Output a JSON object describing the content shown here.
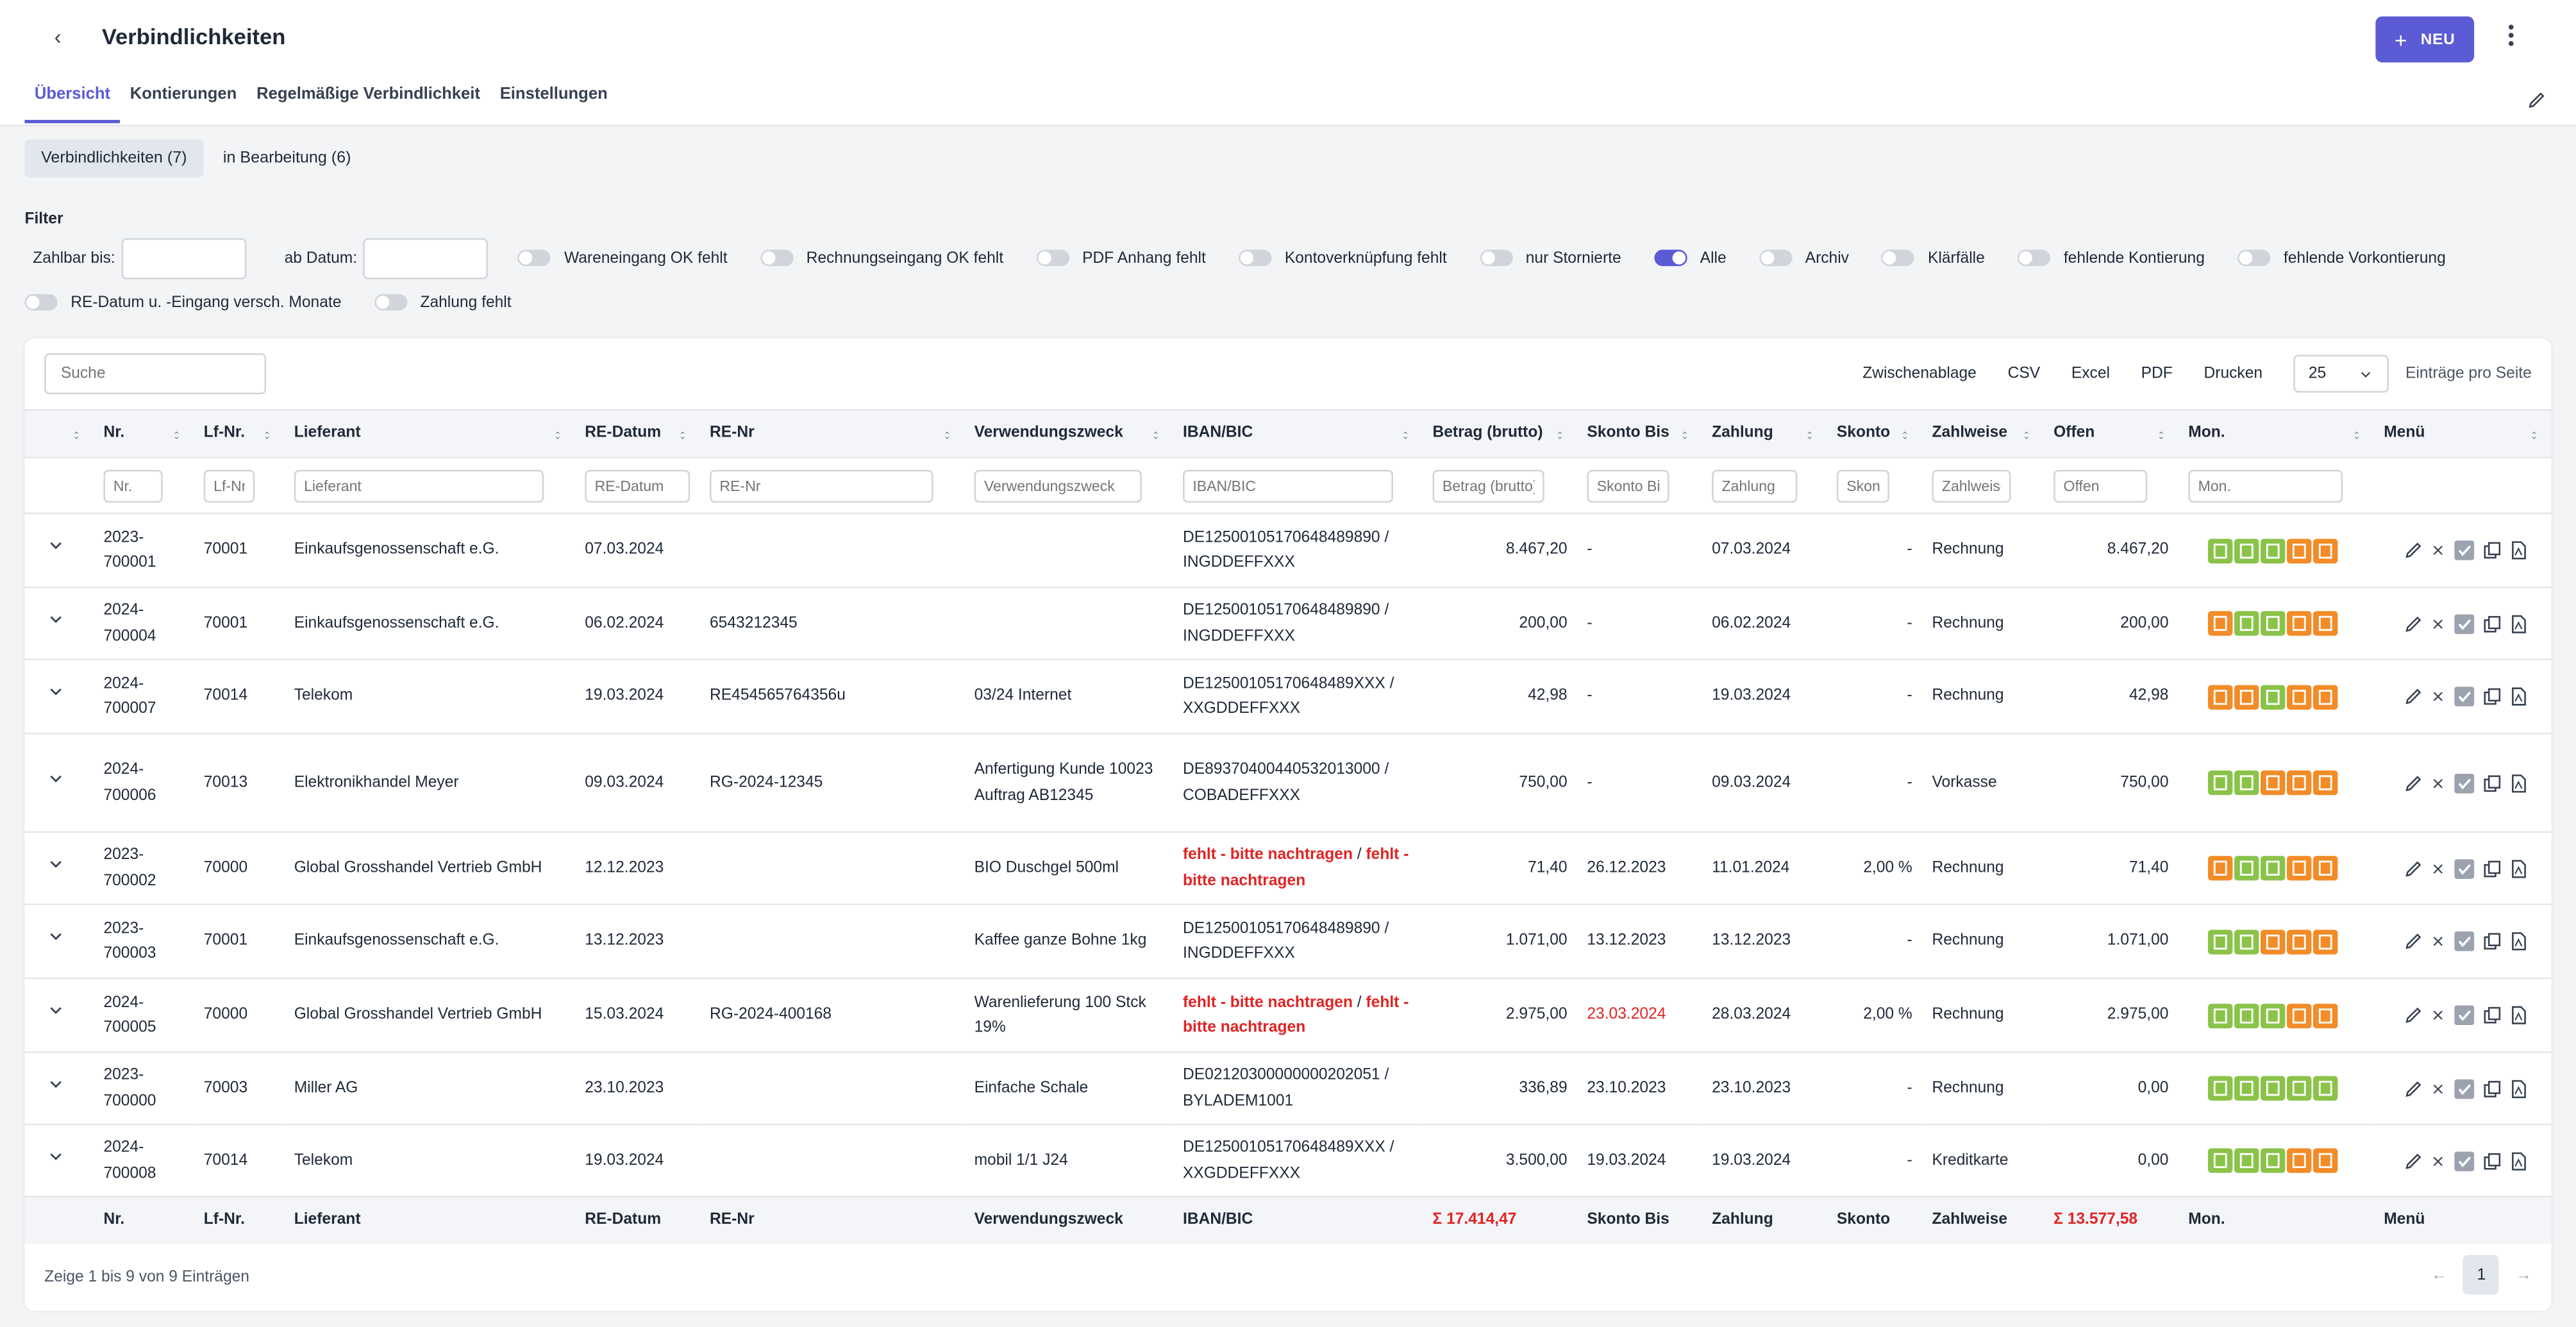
{
  "header": {
    "back": "‹",
    "title": "Verbindlichkeiten",
    "new_button": "NEU",
    "new_icon": "+"
  },
  "tabs": [
    "Übersicht",
    "Kontierungen",
    "Regelmäßige Verbindlichkeit",
    "Einstellungen"
  ],
  "subtabs": [
    "Verbindlichkeiten (7)",
    "in Bearbeitung (6)"
  ],
  "filter": {
    "title": "Filter",
    "dates": [
      "Zahlbar bis:",
      "ab Datum:"
    ],
    "toggles": [
      {
        "label": "Wareneingang OK fehlt",
        "on": false
      },
      {
        "label": "Rechnungseingang OK fehlt",
        "on": false
      },
      {
        "label": "PDF Anhang fehlt",
        "on": false
      },
      {
        "label": "Kontoverknüpfung fehlt",
        "on": false
      },
      {
        "label": "nur Stornierte",
        "on": false
      },
      {
        "label": "Alle",
        "on": true
      },
      {
        "label": "Archiv",
        "on": false
      },
      {
        "label": "Klärfälle",
        "on": false
      },
      {
        "label": "fehlende Kontierung",
        "on": false
      },
      {
        "label": "fehlende Vorkontierung",
        "on": false
      },
      {
        "label": "RE-Datum u. -Eingang versch. Monate",
        "on": false
      },
      {
        "label": "Zahlung fehlt",
        "on": false
      }
    ]
  },
  "toolbar": {
    "search": "Suche",
    "buttons": [
      "Zwischenablage",
      "CSV",
      "Excel",
      "PDF",
      "Drucken"
    ],
    "page_size": "25",
    "page_size_label": "Einträge pro Seite"
  },
  "table": {
    "columns": [
      "Nr.",
      "Lf-Nr.",
      "Lieferant",
      "RE-Datum",
      "RE-Nr",
      "Verwendungszweck",
      "IBAN/BIC",
      "Betrag (brutto)",
      "Skonto Bis",
      "Zahlung",
      "Skonto",
      "Zahlweise",
      "Offen",
      "Mon.",
      "Menü"
    ],
    "filters": [
      "Nr.",
      "Lf-Nr.",
      "Lieferant",
      "RE-Datum",
      "RE-Nr",
      "Verwendungszweck",
      "IBAN/BIC",
      "Betrag (brutto)",
      "Skonto Bis",
      "Zahlung",
      "Skonto",
      "Zahlweise",
      "Offen",
      "Mon."
    ],
    "rows": [
      {
        "nr": "2023-700001",
        "lf": "70001",
        "lieferant": "Einkaufsgenossenschaft e.G.",
        "re_datum": "07.03.2024",
        "iban": "DE12500105170648489890",
        "bic": "/ INGDDEFFXXX",
        "betrag": "8.467,20",
        "skonto_bis": "-",
        "zahlung": "07.03.2024",
        "skonto": "-",
        "zahlweise": "Rechnung",
        "offen": "8.467,20",
        "mon": [
          "#8bc34a",
          "#8bc34a",
          "#8bc34a",
          "#f28c28",
          "#f28c28"
        ]
      },
      {
        "nr": "2024-700004",
        "lf": "70001",
        "lieferant": "Einkaufsgenossenschaft e.G.",
        "re_datum": "06.02.2024",
        "re_nr": "6543212345",
        "iban": "DE12500105170648489890",
        "bic": "/ INGDDEFFXXX",
        "betrag": "200,00",
        "skonto_bis": "-",
        "zahlung": "06.02.2024",
        "skonto": "-",
        "zahlweise": "Rechnung",
        "offen": "200,00",
        "mon": [
          "#f28c28",
          "#8bc34a",
          "#8bc34a",
          "#f28c28",
          "#f28c28"
        ]
      },
      {
        "nr": "2024-700007",
        "lf": "70014",
        "lieferant": "Telekom",
        "re_datum": "19.03.2024",
        "re_nr": "RE454565764356u",
        "zweck": "03/24 Internet",
        "iban": "DE12500105170648489XXX",
        "bic": "/ XXGDDEFFXXX",
        "betrag": "42,98",
        "skonto_bis": "-",
        "zahlung": "19.03.2024",
        "skonto": "-",
        "zahlweise": "Rechnung",
        "offen": "42,98",
        "mon": [
          "#f28c28",
          "#f28c28",
          "#8bc34a",
          "#f28c28",
          "#f28c28"
        ]
      },
      {
        "nr": "2024-700006",
        "lf": "70013",
        "lieferant": "Elektronikhandel Meyer",
        "re_datum": "09.03.2024",
        "re_nr": "RG-2024-12345",
        "zweck": "Anfertigung Kunde 10023 Auftrag AB12345",
        "iban": "DE89370400440532013000",
        "bic": "/ COBADEFFXXX",
        "betrag": "750,00",
        "skonto_bis": "-",
        "zahlung": "09.03.2024",
        "skonto": "-",
        "zahlweise": "Vorkasse",
        "offen": "750,00",
        "mon": [
          "#8bc34a",
          "#8bc34a",
          "#f28c28",
          "#f28c28",
          "#f28c28"
        ]
      },
      {
        "nr": "2023-700002",
        "lf": "70000",
        "lieferant": "Global Grosshandel Vertrieb GmbH",
        "re_datum": "12.12.2023",
        "zweck": "BIO Duschgel 500ml",
        "iban": "fehlt - bitte nachtragen",
        "bic": "fehlt - bitte nachtragen",
        "iban_color": "#e02424",
        "betrag": "71,40",
        "skonto_bis": "26.12.2023",
        "zahlung": "11.01.2024",
        "skonto": "2,00 %",
        "zahlweise": "Rechnung",
        "offen": "71,40",
        "mon": [
          "#f28c28",
          "#8bc34a",
          "#8bc34a",
          "#f28c28",
          "#f28c28"
        ]
      },
      {
        "nr": "2023-700003",
        "lf": "70001",
        "lieferant": "Einkaufsgenossenschaft e.G.",
        "re_datum": "13.12.2023",
        "zweck": "Kaffee ganze Bohne 1kg",
        "iban": "DE12500105170648489890",
        "bic": "/ INGDDEFFXXX",
        "betrag": "1.071,00",
        "skonto_bis": "13.12.2023",
        "zahlung": "13.12.2023",
        "skonto": "-",
        "zahlweise": "Rechnung",
        "offen": "1.071,00",
        "mon": [
          "#8bc34a",
          "#8bc34a",
          "#f28c28",
          "#f28c28",
          "#f28c28"
        ]
      },
      {
        "nr": "2024-700005",
        "lf": "70000",
        "lieferant": "Global Grosshandel Vertrieb GmbH",
        "re_datum": "15.03.2024",
        "re_nr": "RG-2024-400168",
        "zweck": "Warenlieferung 100 Stck 19%",
        "iban": "fehlt - bitte nachtragen",
        "bic": "fehlt - bitte nachtragen",
        "iban_color": "#e02424",
        "betrag": "2.975,00",
        "skonto_bis": "23.03.2024",
        "skonto_bis_color": "#e02424",
        "zahlung": "28.03.2024",
        "skonto": "2,00 %",
        "zahlweise": "Rechnung",
        "offen": "2.975,00",
        "mon": [
          "#8bc34a",
          "#8bc34a",
          "#8bc34a",
          "#f28c28",
          "#f28c28"
        ]
      },
      {
        "nr": "2023-700000",
        "lf": "70003",
        "lieferant": "Miller AG",
        "re_datum": "23.10.2023",
        "zweck": "Einfache Schale",
        "iban": "DE02120300000000202051",
        "bic": "/ BYLADEM1001",
        "betrag": "336,89",
        "skonto_bis": "23.10.2023",
        "zahlung": "23.10.2023",
        "skonto": "-",
        "zahlweise": "Rechnung",
        "offen": "0,00",
        "mon": [
          "#8bc34a",
          "#8bc34a",
          "#8bc34a",
          "#8bc34a",
          "#8bc34a"
        ]
      },
      {
        "nr": "2024-700008",
        "lf": "70014",
        "lieferant": "Telekom",
        "re_datum": "19.03.2024",
        "zweck": "mobil 1/1 J24",
        "iban": "DE12500105170648489XXX",
        "bic": "/ XXGDDEFFXXX",
        "betrag": "3.500,00",
        "skonto_bis": "19.03.2024",
        "zahlung": "19.03.2024",
        "skonto": "-",
        "zahlweise": "Kreditkarte",
        "offen": "0,00",
        "mon": [
          "#8bc34a",
          "#8bc34a",
          "#8bc34a",
          "#f28c28",
          "#f28c28"
        ]
      }
    ],
    "footer": [
      "Nr.",
      "Lf-Nr.",
      "Lieferant",
      "RE-Datum",
      "RE-Nr",
      "Verwendungszweck",
      "IBAN/BIC",
      "Σ 17.414,47",
      "Skonto Bis",
      "Zahlung",
      "Skonto",
      "Zahlweise",
      "Σ 13.577,58",
      "Mon.",
      "Menü"
    ]
  },
  "pagination": {
    "info": "Zeige 1 bis 9 von 9 Einträgen",
    "prev": "←",
    "page": "1",
    "next": "→"
  }
}
